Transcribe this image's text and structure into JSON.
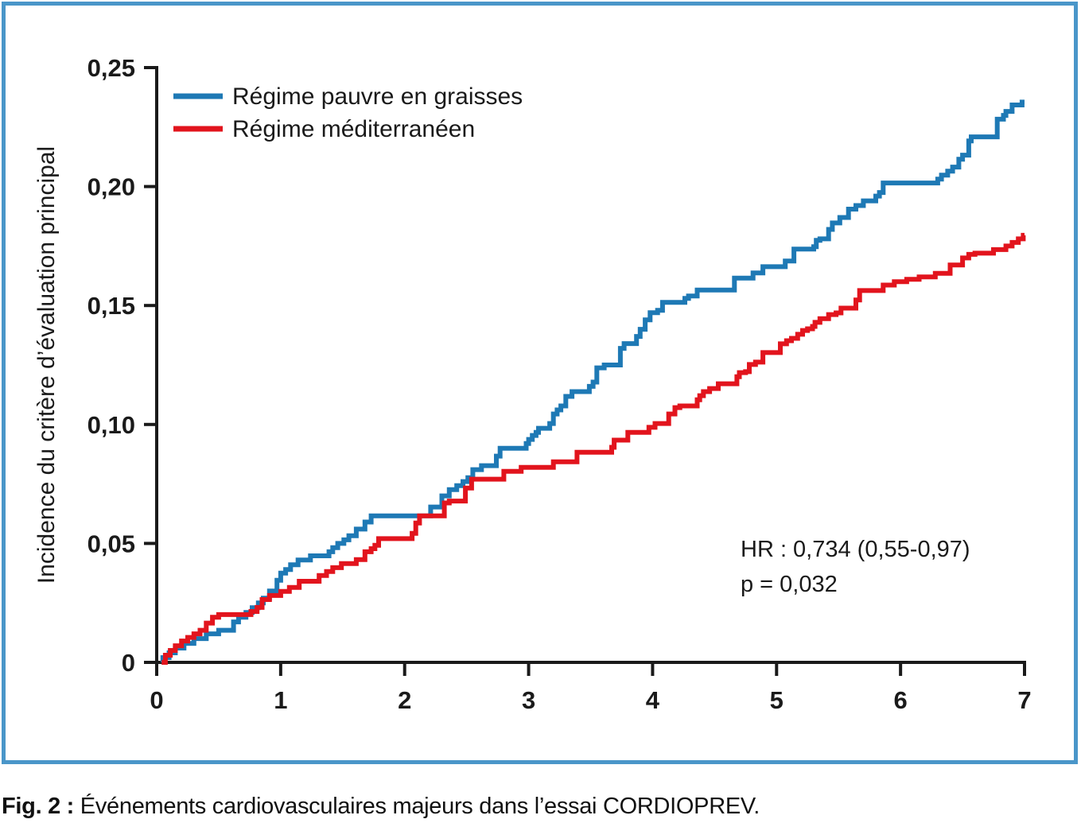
{
  "figure": {
    "border_color": "#4a96c9",
    "caption_prefix": "Fig. 2 :",
    "caption_text": " Événements cardiovasculaires majeurs dans l’essai CORDIOPREV."
  },
  "chart_data": {
    "type": "line",
    "step_style": "step-after",
    "title": "",
    "xlabel": "",
    "ylabel": "Incidence du critère d’évaluation principal",
    "xlim": [
      0,
      7
    ],
    "ylim": [
      0,
      0.25
    ],
    "x_ticks": [
      "0",
      "1",
      "2",
      "3",
      "4",
      "5",
      "6",
      "7"
    ],
    "x_tick_values": [
      0,
      1,
      2,
      3,
      4,
      5,
      6,
      7
    ],
    "y_ticks": [
      "0",
      "0,05",
      "0,10",
      "0,15",
      "0,20",
      "0,25"
    ],
    "y_tick_values": [
      0,
      0.05,
      0.1,
      0.15,
      0.2,
      0.25
    ],
    "grid": false,
    "legend_position": "top-left-inside",
    "annotation": {
      "line1": "HR : 0,734 (0,55-0,97)",
      "line2": "p = 0,032"
    },
    "series": [
      {
        "name": "Régime pauvre en graisses",
        "color": "#1e79b5",
        "points": [
          [
            0.05,
            0.002
          ],
          [
            0.1,
            0.004
          ],
          [
            0.15,
            0.006
          ],
          [
            0.22,
            0.008
          ],
          [
            0.3,
            0.01
          ],
          [
            0.4,
            0.012
          ],
          [
            0.5,
            0.0135
          ],
          [
            0.62,
            0.017
          ],
          [
            0.66,
            0.019
          ],
          [
            0.72,
            0.021
          ],
          [
            0.77,
            0.023
          ],
          [
            0.82,
            0.025
          ],
          [
            0.86,
            0.027
          ],
          [
            0.91,
            0.03
          ],
          [
            0.97,
            0.0345
          ],
          [
            1.0,
            0.0375
          ],
          [
            1.04,
            0.039
          ],
          [
            1.08,
            0.041
          ],
          [
            1.14,
            0.043
          ],
          [
            1.24,
            0.0448
          ],
          [
            1.39,
            0.0465
          ],
          [
            1.42,
            0.0482
          ],
          [
            1.46,
            0.05
          ],
          [
            1.51,
            0.0515
          ],
          [
            1.55,
            0.0532
          ],
          [
            1.61,
            0.056
          ],
          [
            1.68,
            0.059
          ],
          [
            1.73,
            0.0616
          ],
          [
            2.21,
            0.0653
          ],
          [
            2.3,
            0.07
          ],
          [
            2.36,
            0.0726
          ],
          [
            2.42,
            0.0743
          ],
          [
            2.47,
            0.076
          ],
          [
            2.51,
            0.0776
          ],
          [
            2.55,
            0.081
          ],
          [
            2.62,
            0.0827
          ],
          [
            2.74,
            0.0867
          ],
          [
            2.77,
            0.09
          ],
          [
            2.98,
            0.092
          ],
          [
            3.0,
            0.0937
          ],
          [
            3.03,
            0.0954
          ],
          [
            3.06,
            0.0967
          ],
          [
            3.08,
            0.0984
          ],
          [
            3.17,
            0.1004
          ],
          [
            3.2,
            0.1044
          ],
          [
            3.23,
            0.1061
          ],
          [
            3.26,
            0.1078
          ],
          [
            3.3,
            0.1118
          ],
          [
            3.35,
            0.1138
          ],
          [
            3.49,
            0.116
          ],
          [
            3.52,
            0.1178
          ],
          [
            3.55,
            0.1238
          ],
          [
            3.61,
            0.125
          ],
          [
            3.74,
            0.132
          ],
          [
            3.77,
            0.134
          ],
          [
            3.87,
            0.137
          ],
          [
            3.9,
            0.14
          ],
          [
            3.94,
            0.144
          ],
          [
            3.98,
            0.147
          ],
          [
            4.04,
            0.148
          ],
          [
            4.08,
            0.1513
          ],
          [
            4.26,
            0.153
          ],
          [
            4.29,
            0.154
          ],
          [
            4.36,
            0.1565
          ],
          [
            4.66,
            0.1615
          ],
          [
            4.81,
            0.1637
          ],
          [
            4.89,
            0.1663
          ],
          [
            5.07,
            0.1687
          ],
          [
            5.14,
            0.1737
          ],
          [
            5.3,
            0.1747
          ],
          [
            5.32,
            0.1774
          ],
          [
            5.35,
            0.178
          ],
          [
            5.42,
            0.182
          ],
          [
            5.45,
            0.1847
          ],
          [
            5.51,
            0.187
          ],
          [
            5.58,
            0.1905
          ],
          [
            5.64,
            0.192
          ],
          [
            5.7,
            0.194
          ],
          [
            5.8,
            0.196
          ],
          [
            5.83,
            0.1975
          ],
          [
            5.86,
            0.2015
          ],
          [
            6.3,
            0.2031
          ],
          [
            6.33,
            0.2048
          ],
          [
            6.38,
            0.2065
          ],
          [
            6.42,
            0.2082
          ],
          [
            6.47,
            0.2115
          ],
          [
            6.5,
            0.2132
          ],
          [
            6.55,
            0.2192
          ],
          [
            6.57,
            0.2209
          ],
          [
            6.78,
            0.2283
          ],
          [
            6.83,
            0.2299
          ],
          [
            6.85,
            0.2316
          ],
          [
            6.9,
            0.2343
          ],
          [
            6.98,
            0.2355
          ]
        ]
      },
      {
        "name": "Régime méditerranéen",
        "color": "#e2141d",
        "points": [
          [
            0.07,
            0.003
          ],
          [
            0.11,
            0.005
          ],
          [
            0.15,
            0.007
          ],
          [
            0.2,
            0.009
          ],
          [
            0.25,
            0.0105
          ],
          [
            0.3,
            0.012
          ],
          [
            0.35,
            0.0135
          ],
          [
            0.4,
            0.0165
          ],
          [
            0.45,
            0.019
          ],
          [
            0.5,
            0.0201
          ],
          [
            0.76,
            0.0214
          ],
          [
            0.81,
            0.0231
          ],
          [
            0.85,
            0.0264
          ],
          [
            0.91,
            0.0281
          ],
          [
            1.0,
            0.0298
          ],
          [
            1.07,
            0.0315
          ],
          [
            1.15,
            0.0341
          ],
          [
            1.31,
            0.0365
          ],
          [
            1.37,
            0.0382
          ],
          [
            1.42,
            0.0398
          ],
          [
            1.49,
            0.0415
          ],
          [
            1.61,
            0.0432
          ],
          [
            1.68,
            0.0465
          ],
          [
            1.73,
            0.0478
          ],
          [
            1.76,
            0.0492
          ],
          [
            1.79,
            0.052
          ],
          [
            2.06,
            0.0542
          ],
          [
            2.09,
            0.0586
          ],
          [
            2.12,
            0.0616
          ],
          [
            2.32,
            0.067
          ],
          [
            2.36,
            0.0678
          ],
          [
            2.49,
            0.0733
          ],
          [
            2.54,
            0.077
          ],
          [
            2.8,
            0.0803
          ],
          [
            2.94,
            0.082
          ],
          [
            3.2,
            0.0843
          ],
          [
            3.39,
            0.0883
          ],
          [
            3.67,
            0.0904
          ],
          [
            3.69,
            0.0934
          ],
          [
            3.8,
            0.0967
          ],
          [
            3.97,
            0.0988
          ],
          [
            4.02,
            0.1004
          ],
          [
            4.13,
            0.1044
          ],
          [
            4.18,
            0.1071
          ],
          [
            4.22,
            0.1078
          ],
          [
            4.36,
            0.1104
          ],
          [
            4.38,
            0.1121
          ],
          [
            4.41,
            0.1138
          ],
          [
            4.46,
            0.1151
          ],
          [
            4.53,
            0.1171
          ],
          [
            4.68,
            0.1201
          ],
          [
            4.7,
            0.1218
          ],
          [
            4.75,
            0.1222
          ],
          [
            4.78,
            0.1252
          ],
          [
            4.83,
            0.1262
          ],
          [
            4.89,
            0.1302
          ],
          [
            5.03,
            0.1339
          ],
          [
            5.08,
            0.1352
          ],
          [
            5.12,
            0.1362
          ],
          [
            5.17,
            0.1379
          ],
          [
            5.21,
            0.1395
          ],
          [
            5.25,
            0.1402
          ],
          [
            5.29,
            0.1412
          ],
          [
            5.31,
            0.1429
          ],
          [
            5.35,
            0.1445
          ],
          [
            5.42,
            0.1462
          ],
          [
            5.48,
            0.1469
          ],
          [
            5.52,
            0.1489
          ],
          [
            5.64,
            0.1523
          ],
          [
            5.67,
            0.1563
          ],
          [
            5.86,
            0.1586
          ],
          [
            5.95,
            0.16
          ],
          [
            6.05,
            0.161
          ],
          [
            6.15,
            0.162
          ],
          [
            6.28,
            0.1635
          ],
          [
            6.4,
            0.167
          ],
          [
            6.5,
            0.17
          ],
          [
            6.55,
            0.1715
          ],
          [
            6.6,
            0.172
          ],
          [
            6.75,
            0.1735
          ],
          [
            6.85,
            0.175
          ],
          [
            6.9,
            0.1765
          ],
          [
            6.95,
            0.178
          ],
          [
            6.99,
            0.1795
          ]
        ]
      }
    ]
  }
}
